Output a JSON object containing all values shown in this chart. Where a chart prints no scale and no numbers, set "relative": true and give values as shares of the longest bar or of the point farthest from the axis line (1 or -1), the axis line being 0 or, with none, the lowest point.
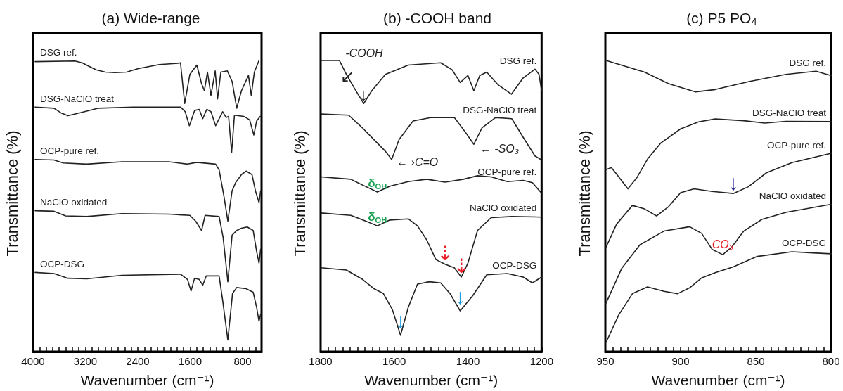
{
  "chart_data": [
    {
      "type": "line",
      "title": "(a) Wide-range",
      "xlabel": "Wavenumber (cm⁻¹)",
      "ylabel": "Transmittance (%)",
      "relative": true,
      "grid": false,
      "legend": false,
      "marker": "none",
      "line_style": "solid",
      "xlim": [
        4000,
        510
      ],
      "xticks": [
        4000,
        {
          "value": 3900,
          "label": null
        },
        {
          "value": 3800,
          "label": null
        },
        {
          "value": 3700,
          "label": null
        },
        {
          "value": 3600,
          "label": null
        },
        {
          "value": 3500,
          "label": null
        },
        {
          "value": 3400,
          "label": null
        },
        {
          "value": 3300,
          "label": null
        },
        3200,
        {
          "value": 3100,
          "label": null
        },
        {
          "value": 3000,
          "label": null
        },
        {
          "value": 2900,
          "label": null
        },
        {
          "value": 2800,
          "label": null
        },
        {
          "value": 2700,
          "label": null
        },
        {
          "value": 2600,
          "label": null
        },
        {
          "value": 2500,
          "label": null
        },
        2400,
        {
          "value": 2300,
          "label": null
        },
        {
          "value": 2200,
          "label": null
        },
        {
          "value": 2100,
          "label": null
        },
        {
          "value": 2000,
          "label": null
        },
        {
          "value": 1900,
          "label": null
        },
        {
          "value": 1800,
          "label": null
        },
        {
          "value": 1700,
          "label": null
        },
        1600,
        {
          "value": 1500,
          "label": null
        },
        {
          "value": 1400,
          "label": null
        },
        {
          "value": 1300,
          "label": null
        },
        {
          "value": 1200,
          "label": null
        },
        {
          "value": 1100,
          "label": null
        },
        {
          "value": 1000,
          "label": null
        },
        {
          "value": 900,
          "label": null
        },
        800,
        {
          "value": 700,
          "label": null
        },
        {
          "value": 600,
          "label": null
        }
      ],
      "series": [
        {
          "name": "DSG ref.",
          "color": "#222222",
          "x": [
            3968,
            3359,
            3252,
            3037,
            2894,
            2751,
            2572,
            2393,
            2070,
            1784,
            1748,
            1684,
            1605,
            1498,
            1426,
            1383,
            1336,
            1283,
            1218,
            1182,
            1132,
            1032,
            960,
            889,
            817,
            710,
            667,
            620,
            549
          ],
          "values": [
            0.996,
            0.998,
            0.992,
            0.968,
            0.96,
            0.958,
            0.96,
            0.972,
            0.986,
            0.99,
            0.992,
            0.852,
            0.952,
            0.984,
            0.92,
            0.896,
            0.96,
            0.88,
            0.964,
            0.868,
            0.96,
            0.964,
            0.928,
            0.836,
            0.896,
            0.948,
            0.88,
            0.96,
            1.0
          ]
        },
        {
          "name": "DSG-NaClO treat",
          "color": "#222222",
          "x": [
            3968,
            3681,
            3574,
            3467,
            3288,
            3001,
            2464,
            1748,
            1677,
            1612,
            1533,
            1462,
            1408,
            1347,
            1283,
            1211,
            1104,
            1050,
            1014,
            967,
            924,
            782,
            692,
            628,
            585,
            531
          ],
          "values": [
            0.84,
            0.836,
            0.82,
            0.81,
            0.82,
            0.836,
            0.84,
            0.84,
            0.824,
            0.776,
            0.828,
            0.832,
            0.8,
            0.832,
            0.824,
            0.776,
            0.824,
            0.804,
            0.808,
            0.684,
            0.812,
            0.808,
            0.796,
            0.744,
            0.792,
            0.808
          ]
        },
        {
          "name": "OCP-pure ref.",
          "color": "#222222",
          "x": [
            3968,
            3681,
            3538,
            3180,
            2643,
            1927,
            1641,
            1498,
            1211,
            1158,
            1086,
            1025,
            960,
            907,
            817,
            746,
            656,
            603,
            549,
            524
          ],
          "values": [
            0.66,
            0.658,
            0.648,
            0.644,
            0.652,
            0.652,
            0.644,
            0.65,
            0.644,
            0.624,
            0.536,
            0.448,
            0.552,
            0.58,
            0.608,
            0.62,
            0.608,
            0.552,
            0.512,
            0.552
          ]
        },
        {
          "name": "NaClO oxidated",
          "color": "#222222",
          "x": [
            3968,
            3681,
            3502,
            3180,
            2643,
            1927,
            1605,
            1516,
            1426,
            1372,
            1158,
            1097,
            1025,
            960,
            889,
            817,
            728,
            638,
            585,
            549,
            524
          ],
          "values": [
            0.484,
            0.482,
            0.466,
            0.464,
            0.474,
            0.472,
            0.468,
            0.448,
            0.416,
            0.468,
            0.464,
            0.392,
            0.24,
            0.4,
            0.416,
            0.424,
            0.428,
            0.416,
            0.344,
            0.304,
            0.352
          ]
        },
        {
          "name": "OCP-DSG",
          "color": "#222222",
          "x": [
            3968,
            3681,
            3467,
            3180,
            2643,
            1748,
            1641,
            1587,
            1533,
            1462,
            1408,
            1354,
            1158,
            1104,
            1025,
            953,
            889,
            746,
            638,
            585,
            549,
            524
          ],
          "values": [
            0.272,
            0.268,
            0.252,
            0.25,
            0.262,
            0.266,
            0.248,
            0.208,
            0.252,
            0.248,
            0.228,
            0.26,
            0.26,
            0.176,
            0.04,
            0.2,
            0.22,
            0.216,
            0.204,
            0.152,
            0.104,
            0.128
          ]
        }
      ]
    },
    {
      "type": "line",
      "title": "(b) -COOH band",
      "xlabel": "Wavenumber (cm⁻¹)",
      "ylabel": "Transmittance (%)",
      "relative": true,
      "grid": false,
      "legend": false,
      "marker": "none",
      "line_style": "solid",
      "xlim": [
        1800,
        1200
      ],
      "xticks": [
        1800,
        {
          "value": 1780,
          "label": null
        },
        {
          "value": 1760,
          "label": null
        },
        {
          "value": 1740,
          "label": null
        },
        {
          "value": 1720,
          "label": null
        },
        {
          "value": 1700,
          "label": null
        },
        {
          "value": 1680,
          "label": null
        },
        {
          "value": 1660,
          "label": null
        },
        {
          "value": 1640,
          "label": null
        },
        {
          "value": 1620,
          "label": null
        },
        1600,
        {
          "value": 1580,
          "label": null
        },
        {
          "value": 1560,
          "label": null
        },
        {
          "value": 1540,
          "label": null
        },
        {
          "value": 1520,
          "label": null
        },
        {
          "value": 1500,
          "label": null
        },
        {
          "value": 1480,
          "label": null
        },
        {
          "value": 1460,
          "label": null
        },
        {
          "value": 1440,
          "label": null
        },
        {
          "value": 1420,
          "label": null
        },
        1400,
        {
          "value": 1380,
          "label": null
        },
        {
          "value": 1360,
          "label": null
        },
        {
          "value": 1340,
          "label": null
        },
        {
          "value": 1320,
          "label": null
        },
        {
          "value": 1300,
          "label": null
        },
        {
          "value": 1280,
          "label": null
        },
        {
          "value": 1260,
          "label": null
        },
        {
          "value": 1240,
          "label": null
        },
        {
          "value": 1220,
          "label": null
        },
        1200
      ],
      "series": [
        {
          "name": "DSG ref.",
          "color": "#222222",
          "x": [
            1799,
            1749,
            1730,
            1708,
            1683,
            1661,
            1624,
            1562,
            1474,
            1443,
            1421,
            1400,
            1384,
            1368,
            1349,
            1318,
            1282,
            1250,
            1218,
            1207,
            1200
          ],
          "values": [
            1.0,
            1.0,
            0.952,
            0.904,
            0.852,
            0.896,
            0.952,
            0.984,
            0.992,
            0.968,
            0.924,
            0.948,
            0.896,
            0.948,
            0.96,
            0.916,
            0.884,
            0.94,
            0.97,
            0.952,
            0.896
          ]
        },
        {
          "name": "DSG-NaClO treat",
          "color": "#222222",
          "x": [
            1799,
            1724,
            1686,
            1649,
            1624,
            1607,
            1587,
            1549,
            1499,
            1437,
            1406,
            1384,
            1362,
            1325,
            1281,
            1250,
            1218,
            1200
          ],
          "values": [
            0.816,
            0.812,
            0.768,
            0.72,
            0.688,
            0.66,
            0.728,
            0.792,
            0.804,
            0.804,
            0.752,
            0.712,
            0.768,
            0.804,
            0.8,
            0.736,
            0.672,
            0.658
          ]
        },
        {
          "name": "OCP-pure ref.",
          "color": "#222222",
          "x": [
            1799,
            1718,
            1686,
            1646,
            1612,
            1562,
            1512,
            1462,
            1412,
            1374,
            1337,
            1293,
            1250,
            1225,
            1200
          ],
          "values": [
            0.6,
            0.592,
            0.572,
            0.548,
            0.568,
            0.584,
            0.592,
            0.582,
            0.592,
            0.604,
            0.6,
            0.584,
            0.588,
            0.58,
            0.544
          ]
        },
        {
          "name": "NaClO oxidated",
          "color": "#222222",
          "x": [
            1799,
            1718,
            1677,
            1646,
            1612,
            1562,
            1537,
            1512,
            1487,
            1462,
            1437,
            1418,
            1400,
            1374,
            1337,
            1281,
            1200
          ],
          "values": [
            0.476,
            0.468,
            0.448,
            0.432,
            0.452,
            0.456,
            0.432,
            0.384,
            0.316,
            0.3,
            0.288,
            0.256,
            0.304,
            0.416,
            0.46,
            0.464,
            0.462
          ]
        },
        {
          "name": "OCP-DSG",
          "color": "#222222",
          "x": [
            1799,
            1730,
            1686,
            1655,
            1630,
            1605,
            1583,
            1562,
            1537,
            1505,
            1474,
            1449,
            1421,
            1387,
            1349,
            1293,
            1250,
            1225,
            1200
          ],
          "values": [
            0.288,
            0.28,
            0.248,
            0.216,
            0.2,
            0.144,
            0.056,
            0.152,
            0.232,
            0.24,
            0.236,
            0.2,
            0.14,
            0.192,
            0.264,
            0.268,
            0.256,
            0.236,
            0.256
          ]
        }
      ],
      "annotations": [
        "-COOH",
        {
          "text": "↙",
          "x": 1708,
          "y": 0.904
        },
        {
          "text": "↓",
          "x": 1683,
          "y": 0.852
        },
        {
          "text": "← ›C=O",
          "x": 1607,
          "y": 0.66
        },
        {
          "text": "← -SO₃",
          "x": 1384,
          "y": 0.712
        },
        {
          "text": "δ$_{OH}$",
          "x": 1646,
          "y": 0.548
        },
        {
          "text": "δ$_{OH}$",
          "x": 1646,
          "y": 0.432
        },
        {
          "text": "⇣",
          "x": 1462,
          "y": 0.3
        },
        {
          "text": "⇣",
          "x": 1418,
          "y": 0.256
        },
        {
          "text": "↓",
          "x": 1583,
          "y": 0.056
        },
        {
          "text": "↓",
          "x": 1421,
          "y": 0.14
        }
      ]
    },
    {
      "type": "line",
      "title": "(c) P5 PO₄",
      "xlabel": "Wavenumber (cm⁻¹)",
      "ylabel": "Transmittance (%)",
      "relative": true,
      "grid": false,
      "legend": false,
      "marker": "none",
      "line_style": "solid",
      "xlim": [
        950,
        800
      ],
      "xticks": [
        950,
        {
          "value": 945,
          "label": null
        },
        {
          "value": 940,
          "label": null
        },
        {
          "value": 935,
          "label": null
        },
        {
          "value": 930,
          "label": null
        },
        {
          "value": 925,
          "label": null
        },
        {
          "value": 920,
          "label": null
        },
        {
          "value": 915,
          "label": null
        },
        {
          "value": 910,
          "label": null
        },
        {
          "value": 905,
          "label": null
        },
        900,
        {
          "value": 895,
          "label": null
        },
        {
          "value": 890,
          "label": null
        },
        {
          "value": 885,
          "label": null
        },
        {
          "value": 880,
          "label": null
        },
        {
          "value": 875,
          "label": null
        },
        {
          "value": 870,
          "label": null
        },
        {
          "value": 865,
          "label": null
        },
        {
          "value": 860,
          "label": null
        },
        {
          "value": 855,
          "label": null
        },
        850,
        {
          "value": 845,
          "label": null
        },
        {
          "value": 840,
          "label": null
        },
        {
          "value": 835,
          "label": null
        },
        {
          "value": 830,
          "label": null
        },
        {
          "value": 825,
          "label": null
        },
        {
          "value": 820,
          "label": null
        },
        {
          "value": 815,
          "label": null
        },
        {
          "value": 810,
          "label": null
        },
        {
          "value": 805,
          "label": null
        },
        800
      ],
      "series": [
        {
          "name": "DSG ref.",
          "color": "#222222",
          "x": [
            949.5,
            924,
            908,
            890,
            877,
            854,
            830,
            810,
            800
          ],
          "values": [
            1.0,
            0.96,
            0.92,
            0.892,
            0.9,
            0.928,
            0.952,
            0.963,
            0.948
          ]
        },
        {
          "name": "DSG-NaClO treat",
          "color": "#222222",
          "x": [
            949.5,
            946,
            942,
            935,
            929,
            922,
            913,
            900,
            888,
            877,
            858,
            844,
            830,
            800
          ],
          "values": [
            0.625,
            0.632,
            0.606,
            0.559,
            0.598,
            0.661,
            0.717,
            0.765,
            0.789,
            0.799,
            0.793,
            0.785,
            0.791,
            0.79
          ]
        },
        {
          "name": "OCP-pure ref.",
          "color": "#222222",
          "x": [
            949.5,
            942.5,
            932,
            924,
            916,
            908,
            900,
            891,
            879,
            865,
            855,
            843,
            826,
            800
          ],
          "values": [
            0.359,
            0.438,
            0.502,
            0.49,
            0.466,
            0.498,
            0.546,
            0.559,
            0.55,
            0.543,
            0.566,
            0.614,
            0.649,
            0.681
          ]
        },
        {
          "name": "NaClO oxidated",
          "color": "#222222",
          "x": [
            949.5,
            939,
            927,
            911,
            894,
            886,
            879,
            872,
            866,
            858,
            846,
            830,
            800
          ],
          "values": [
            0.167,
            0.287,
            0.367,
            0.414,
            0.429,
            0.406,
            0.351,
            0.333,
            0.359,
            0.414,
            0.454,
            0.478,
            0.506
          ]
        },
        {
          "name": "OCP-DSG",
          "color": "#222222",
          "x": [
            949.5,
            941,
            932,
            922,
            911,
            902,
            894,
            886,
            877,
            865,
            849,
            826,
            812,
            800
          ],
          "values": [
            0.032,
            0.127,
            0.199,
            0.222,
            0.207,
            0.199,
            0.219,
            0.253,
            0.271,
            0.291,
            0.327,
            0.343,
            0.339,
            0.336
          ]
        }
      ],
      "annotations": [
        {
          "text": "↓",
          "x": 865,
          "y": 0.543
        },
        {
          "text": "CO₃",
          "x": 872,
          "y": 0.333
        }
      ]
    }
  ]
}
